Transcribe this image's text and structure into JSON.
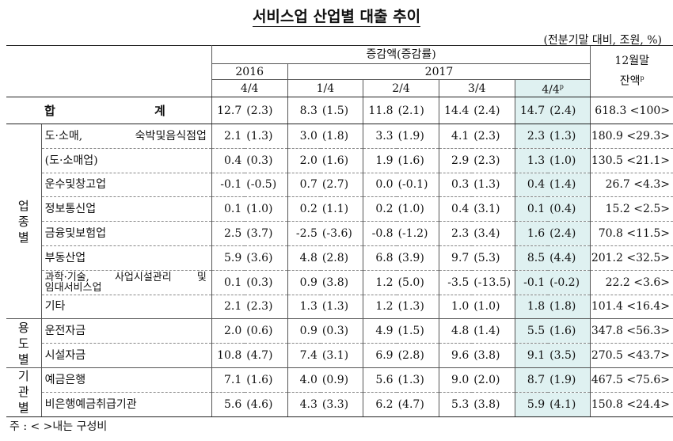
{
  "title": "서비스업 산업별 대출 추이",
  "unit": "(전분기말 대비, 조원, %)",
  "header": {
    "change_label": "증감액(증감률)",
    "balance_label_line1": "12월말",
    "balance_label_line2": "잔액",
    "balance_sup": "p",
    "year_2016": "2016",
    "year_2017": "2017",
    "quarters": [
      "4/4",
      "1/4",
      "2/4",
      "3/4",
      "4/4"
    ],
    "last_quarter_sup": "p"
  },
  "total": {
    "label": "합 계",
    "cells": [
      "12.7",
      "(2.3)",
      "8.3",
      "(1.5)",
      "11.8",
      "(2.1)",
      "14.4",
      "(2.4)",
      "14.7",
      "(2.4)"
    ],
    "balance": "618.3 <100>"
  },
  "groups": [
    {
      "label": "업종별",
      "rows": [
        {
          "label": "도·소매, 숙박및음식점업",
          "cells": [
            "2.1",
            "(1.3)",
            "3.0",
            "(1.8)",
            "3.3",
            "(1.9)",
            "4.1",
            "(2.3)",
            "2.3",
            "(1.3)"
          ],
          "balance": "180.9 <29.3>"
        },
        {
          "label": "(도·소매업)",
          "cells": [
            "0.4",
            "(0.3)",
            "2.0",
            "(1.6)",
            "1.9",
            "(1.6)",
            "2.9",
            "(2.3)",
            "1.3",
            "(1.0)"
          ],
          "balance": "130.5 <21.1>"
        },
        {
          "label": "운수및창고업",
          "cells": [
            "-0.1",
            "(-0.5)",
            "0.7",
            "(2.7)",
            "0.0",
            "(-0.1)",
            "0.3",
            "(1.3)",
            "0.4",
            "(1.4)"
          ],
          "balance": "26.7 <4.3>"
        },
        {
          "label": "정보통신업",
          "cells": [
            "0.1",
            "(1.0)",
            "0.2",
            "(1.1)",
            "0.2",
            "(1.0)",
            "0.4",
            "(3.1)",
            "0.1",
            "(0.4)"
          ],
          "balance": "15.2 <2.5>"
        },
        {
          "label": "금융및보험업",
          "cells": [
            "2.5",
            "(3.7)",
            "-2.5",
            "(-3.6)",
            "-0.8",
            "(-1.2)",
            "2.3",
            "(3.4)",
            "1.6",
            "(2.4)"
          ],
          "balance": "70.8 <11.5>"
        },
        {
          "label": "부동산업",
          "cells": [
            "5.9",
            "(3.6)",
            "4.8",
            "(2.8)",
            "6.8",
            "(3.9)",
            "9.7",
            "(5.3)",
            "8.5",
            "(4.4)"
          ],
          "balance": "201.2 <32.5>"
        },
        {
          "label": "과학·기술, 사업시설관리 및",
          "label2": "임대서비스업",
          "cells": [
            "0.1",
            "(0.3)",
            "0.9",
            "(3.8)",
            "1.2",
            "(5.0)",
            "-3.5",
            "(-13.5)",
            "-0.1",
            "(-0.2)"
          ],
          "balance": "22.2 <3.6>"
        },
        {
          "label": "기타",
          "cells": [
            "2.1",
            "(2.3)",
            "1.3",
            "(1.3)",
            "1.2",
            "(1.3)",
            "1.0",
            "(1.0)",
            "1.8",
            "(1.8)"
          ],
          "balance": "101.4 <16.4>"
        }
      ]
    },
    {
      "label": "용도별",
      "rows": [
        {
          "label": "운전자금",
          "cells": [
            "2.0",
            "(0.6)",
            "0.9",
            "(0.3)",
            "4.9",
            "(1.5)",
            "4.8",
            "(1.4)",
            "5.5",
            "(1.6)"
          ],
          "balance": "347.8 <56.3>"
        },
        {
          "label": "시설자금",
          "cells": [
            "10.8",
            "(4.7)",
            "7.4",
            "(3.1)",
            "6.9",
            "(2.8)",
            "9.6",
            "(3.8)",
            "9.1",
            "(3.5)"
          ],
          "balance": "270.5 <43.7>"
        }
      ]
    },
    {
      "label": "기관별",
      "rows": [
        {
          "label": "예금은행",
          "cells": [
            "7.1",
            "(1.6)",
            "4.0",
            "(0.9)",
            "5.6",
            "(1.3)",
            "9.0",
            "(2.0)",
            "8.7",
            "(1.9)"
          ],
          "balance": "467.5 <75.6>"
        },
        {
          "label": "비은행예금취급기관",
          "cells": [
            "5.6",
            "(4.6)",
            "4.3",
            "(3.3)",
            "6.2",
            "(4.7)",
            "5.3",
            "(3.8)",
            "5.9",
            "(4.1)"
          ],
          "balance": "150.8 <24.4>"
        }
      ]
    }
  ],
  "note": "주 : <   >내는 구성비"
}
